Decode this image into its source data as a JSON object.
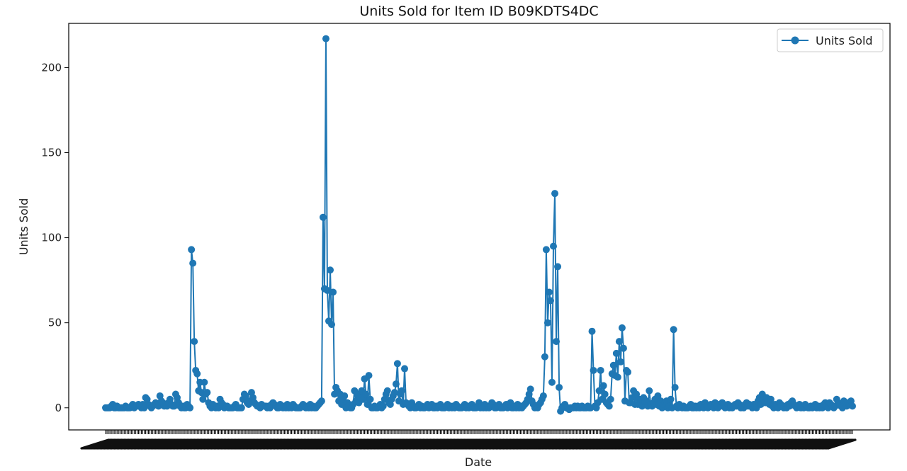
{
  "chart_data": {
    "type": "line",
    "title": "Units Sold for Item ID B09KDTS4DC",
    "xlabel": "Date",
    "ylabel": "Units Sold",
    "ylim": [
      -13,
      226
    ],
    "yticks": [
      0,
      50,
      100,
      150,
      200
    ],
    "grid": false,
    "legend": "top-right",
    "x_tick_labels_legible": false,
    "series": [
      {
        "name": "Units Sold",
        "color": "#1f77b4",
        "marker": "circle",
        "values": [
          0,
          0,
          0,
          0,
          1,
          2,
          0,
          0,
          1,
          0,
          0,
          0,
          0,
          0,
          1,
          0,
          0,
          0,
          1,
          2,
          0,
          1,
          1,
          2,
          1,
          0,
          2,
          0,
          6,
          5,
          2,
          1,
          0,
          1,
          2,
          3,
          2,
          1,
          7,
          4,
          3,
          1,
          2,
          1,
          3,
          5,
          2,
          1,
          1,
          8,
          6,
          3,
          1,
          0,
          1,
          0,
          0,
          2,
          1,
          0,
          93,
          85,
          39,
          22,
          20,
          10,
          15,
          9,
          5,
          15,
          8,
          9,
          3,
          1,
          0,
          2,
          1,
          0,
          1,
          0,
          5,
          3,
          2,
          0,
          1,
          1,
          0,
          0,
          0,
          0,
          1,
          2,
          0,
          0,
          0,
          0,
          5,
          8,
          7,
          3,
          2,
          4,
          9,
          6,
          3,
          2,
          1,
          1,
          0,
          2,
          1,
          1,
          1,
          0,
          1,
          0,
          2,
          3,
          2,
          1,
          0,
          0,
          2,
          1,
          0,
          1,
          0,
          2,
          0,
          1,
          0,
          2,
          1,
          0,
          0,
          0,
          0,
          1,
          2,
          1,
          0,
          1,
          0,
          2,
          0,
          1,
          0,
          0,
          1,
          2,
          3,
          4,
          112,
          70,
          217,
          69,
          51,
          81,
          49,
          68,
          8,
          12,
          10,
          4,
          8,
          2,
          5,
          7,
          0,
          3,
          1,
          0,
          0,
          2,
          10,
          4,
          8,
          3,
          6,
          10,
          5,
          17,
          8,
          2,
          19,
          5,
          0,
          0,
          1,
          0,
          0,
          1,
          2,
          0,
          1,
          5,
          8,
          10,
          3,
          2,
          5,
          7,
          9,
          14,
          26,
          4,
          8,
          10,
          2,
          23,
          3,
          2,
          1,
          0,
          3,
          1,
          0,
          0,
          1,
          2,
          0,
          1,
          0,
          0,
          1,
          2,
          0,
          1,
          2,
          0,
          0,
          1,
          0,
          1,
          2,
          0,
          0,
          0,
          1,
          2,
          0,
          1,
          0,
          1,
          0,
          2,
          1,
          0,
          0,
          0,
          1,
          2,
          0,
          1,
          0,
          1,
          2,
          0,
          0,
          0,
          1,
          3,
          0,
          1,
          0,
          2,
          0,
          1,
          0,
          1,
          3,
          2,
          0,
          0,
          1,
          2,
          0,
          0,
          0,
          1,
          2,
          0,
          2,
          3,
          0,
          0,
          1,
          0,
          2,
          0,
          1,
          0,
          1,
          2,
          3,
          5,
          8,
          11,
          4,
          2,
          0,
          1,
          0,
          2,
          3,
          5,
          7,
          30,
          93,
          50,
          68,
          63,
          15,
          95,
          126,
          39,
          83,
          12,
          -2,
          0,
          1,
          2,
          0,
          0,
          -1,
          0,
          0,
          0,
          1,
          0,
          1,
          0,
          0,
          1,
          0,
          0,
          0,
          1,
          0,
          0,
          45,
          22,
          1,
          0,
          3,
          10,
          22,
          5,
          13,
          8,
          3,
          2,
          1,
          5,
          20,
          25,
          19,
          32,
          18,
          39,
          27,
          47,
          35,
          4,
          22,
          21,
          3,
          3,
          6,
          10,
          2,
          8,
          2,
          5,
          4,
          1,
          6,
          3,
          4,
          1,
          10,
          2,
          1,
          3,
          5,
          2,
          7,
          1,
          4,
          0,
          2,
          3,
          4,
          0,
          1,
          5,
          0,
          46,
          12,
          1,
          0,
          2,
          1,
          0,
          1,
          0,
          0,
          0,
          1,
          2,
          0,
          0,
          1,
          0,
          1,
          0,
          2,
          1,
          0,
          3,
          1,
          0,
          1,
          2,
          1,
          0,
          3,
          1,
          0,
          2,
          1,
          3,
          2,
          0,
          1,
          2,
          0,
          1,
          0,
          1,
          2,
          1,
          3,
          2,
          0,
          1,
          0,
          2,
          3,
          1,
          2,
          1,
          0,
          2,
          1,
          0,
          4,
          6,
          2,
          8,
          5,
          3,
          6,
          4,
          2,
          5,
          1,
          0,
          2,
          1,
          0,
          3,
          2,
          1,
          0,
          1,
          0,
          2,
          1,
          3,
          4,
          2,
          1,
          0,
          1,
          2,
          0,
          1,
          0,
          2,
          1,
          0,
          0,
          1,
          0,
          1,
          2,
          0,
          1,
          0,
          1,
          0,
          2,
          3,
          1,
          0,
          3,
          2,
          1,
          0,
          1,
          5,
          3,
          2,
          1,
          0,
          4,
          2,
          1,
          3,
          2,
          4,
          1
        ]
      }
    ]
  }
}
